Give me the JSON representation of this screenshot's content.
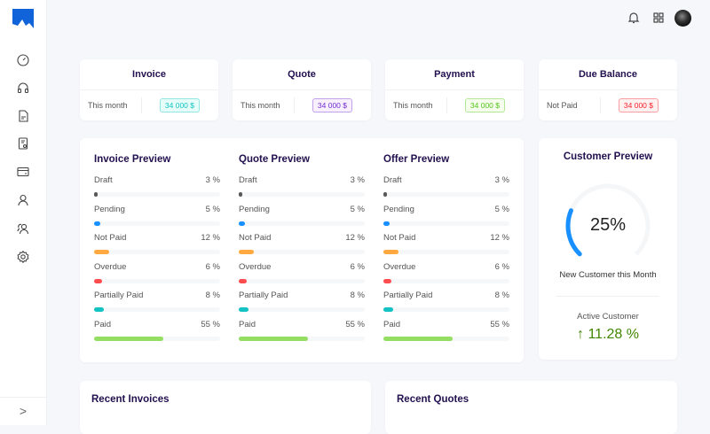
{
  "sidebar": {
    "items": [
      "dashboard-icon",
      "headset-icon",
      "invoice-icon",
      "quote-icon",
      "payment-icon",
      "customer-icon",
      "people-icon",
      "settings-icon"
    ],
    "expand": ">"
  },
  "header": {
    "icons": [
      "bell-icon",
      "apps-grid-icon",
      "avatar"
    ]
  },
  "summary": [
    {
      "title": "Invoice",
      "label": "This month",
      "value": "34 000 $",
      "color": "#13c2c2",
      "bg": "#e6fffb"
    },
    {
      "title": "Quote",
      "label": "This month",
      "value": "34 000 $",
      "color": "#722ed1",
      "bg": "#f9f0ff"
    },
    {
      "title": "Payment",
      "label": "This month",
      "value": "34 000 $",
      "color": "#52c41a",
      "bg": "#f6ffed"
    },
    {
      "title": "Due Balance",
      "label": "Not Paid",
      "value": "34 000 $",
      "color": "#f5222d",
      "bg": "#fff1f0"
    }
  ],
  "previews": [
    {
      "title": "Invoice Preview",
      "rows": [
        {
          "label": "Draft",
          "pct": 3,
          "text": "3 %"
        },
        {
          "label": "Pending",
          "pct": 5,
          "text": "5 %"
        },
        {
          "label": "Not Paid",
          "pct": 12,
          "text": "12 %"
        },
        {
          "label": "Overdue",
          "pct": 6,
          "text": "6 %"
        },
        {
          "label": "Partially Paid",
          "pct": 8,
          "text": "8 %"
        },
        {
          "label": "Paid",
          "pct": 55,
          "text": "55 %"
        }
      ]
    },
    {
      "title": "Quote Preview",
      "rows": [
        {
          "label": "Draft",
          "pct": 3,
          "text": "3 %"
        },
        {
          "label": "Pending",
          "pct": 5,
          "text": "5 %"
        },
        {
          "label": "Not Paid",
          "pct": 12,
          "text": "12 %"
        },
        {
          "label": "Overdue",
          "pct": 6,
          "text": "6 %"
        },
        {
          "label": "Partially Paid",
          "pct": 8,
          "text": "8 %"
        },
        {
          "label": "Paid",
          "pct": 55,
          "text": "55 %"
        }
      ]
    },
    {
      "title": "Offer Preview",
      "rows": [
        {
          "label": "Draft",
          "pct": 3,
          "text": "3 %"
        },
        {
          "label": "Pending",
          "pct": 5,
          "text": "5 %"
        },
        {
          "label": "Not Paid",
          "pct": 12,
          "text": "12 %"
        },
        {
          "label": "Overdue",
          "pct": 6,
          "text": "6 %"
        },
        {
          "label": "Partially Paid",
          "pct": 8,
          "text": "8 %"
        },
        {
          "label": "Paid",
          "pct": 55,
          "text": "55 %"
        }
      ]
    }
  ],
  "bar_colors": [
    "#595959",
    "#1890ff",
    "#ffa940",
    "#ff4d4f",
    "#13c2c2",
    "#95de64"
  ],
  "customer": {
    "title": "Customer Preview",
    "percent": 25,
    "percent_text": "25%",
    "subtitle": "New Customer this Month",
    "active_label": "Active Customer",
    "active_value": "11.28 %",
    "active_color": "#3f8600",
    "gauge_color": "#1890ff"
  },
  "recent": {
    "invoices": "Recent Invoices",
    "quotes": "Recent Quotes"
  }
}
